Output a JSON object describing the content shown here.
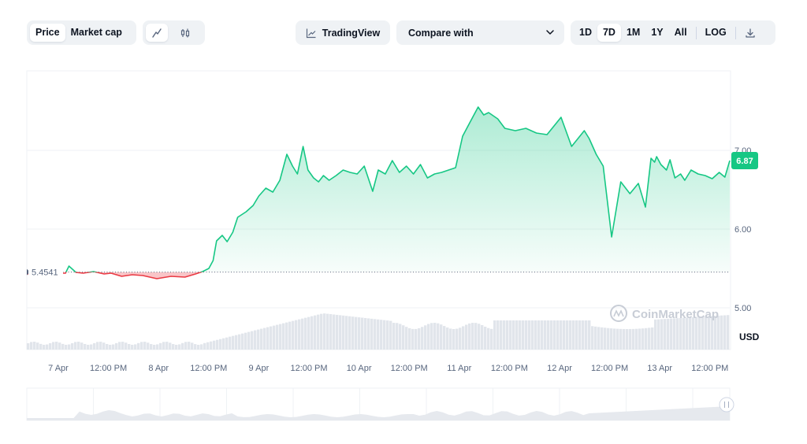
{
  "toolbar": {
    "price_tab": "Price",
    "marketcap_tab": "Market cap",
    "line_chart_icon": "line-chart-icon",
    "candlestick_icon": "candlestick-icon",
    "tradingview_label": "TradingView",
    "compare_label": "Compare with",
    "ranges": [
      "1D",
      "7D",
      "1M",
      "1Y",
      "All"
    ],
    "active_range": "7D",
    "log_label": "LOG",
    "download_icon": "download-icon"
  },
  "chart": {
    "currency": "USD",
    "watermark": "CoinMarketCap",
    "baseline_label": "5.4541",
    "current_label": "6.87",
    "up_color": "#16c784",
    "down_color": "#ea3943"
  },
  "chart_data": {
    "type": "line",
    "title": "",
    "xlabel": "",
    "ylabel": "USD",
    "ylim": [
      4.0,
      7.99
    ],
    "yticks": [
      5.0,
      6.0,
      7.0
    ],
    "ytick_labels": [
      "5.00",
      "6.00",
      "7.00"
    ],
    "xtick_labels": [
      "7 Apr",
      "12:00 PM",
      "8 Apr",
      "12:00 PM",
      "9 Apr",
      "12:00 PM",
      "10 Apr",
      "12:00 PM",
      "11 Apr",
      "12:00 PM",
      "12 Apr",
      "12:00 PM",
      "13 Apr",
      "12:00 PM"
    ],
    "baseline": 5.4541,
    "current": 6.87,
    "grid": true,
    "series": [
      {
        "x": [
          0.0,
          0.055,
          0.06,
          0.07,
          0.08,
          0.095,
          0.11,
          0.12,
          0.135,
          0.15,
          0.165,
          0.175,
          0.185,
          0.205,
          0.225,
          0.24,
          0.25,
          0.259,
          0.265,
          0.27,
          0.278,
          0.285,
          0.293,
          0.3,
          0.312,
          0.322,
          0.33,
          0.34,
          0.35,
          0.36,
          0.37,
          0.378,
          0.385,
          0.393,
          0.4,
          0.408,
          0.415,
          0.422,
          0.43,
          0.44,
          0.45,
          0.46,
          0.47,
          0.48,
          0.492,
          0.5,
          0.51,
          0.52,
          0.53,
          0.54,
          0.55,
          0.56,
          0.57,
          0.58,
          0.59,
          0.6,
          0.61,
          0.62,
          0.63,
          0.642,
          0.65,
          0.657,
          0.67,
          0.68,
          0.695,
          0.71,
          0.725,
          0.74,
          0.76,
          0.775,
          0.793,
          0.8,
          0.81,
          0.82,
          0.832,
          0.845,
          0.858,
          0.87,
          0.88,
          0.888,
          0.893,
          0.896,
          0.902,
          0.91,
          0.915,
          0.922,
          0.93,
          0.936,
          0.945,
          0.955,
          0.965,
          0.975,
          0.985,
          0.993,
          1.0
        ],
        "values": [
          5.43,
          5.44,
          5.53,
          5.45,
          5.44,
          5.46,
          5.43,
          5.44,
          5.4,
          5.42,
          5.41,
          5.39,
          5.37,
          5.4,
          5.39,
          5.43,
          5.46,
          5.5,
          5.6,
          5.85,
          5.92,
          5.84,
          5.96,
          6.15,
          6.22,
          6.3,
          6.42,
          6.52,
          6.47,
          6.62,
          6.95,
          6.8,
          6.7,
          7.05,
          6.75,
          6.65,
          6.6,
          6.68,
          6.62,
          6.68,
          6.75,
          6.72,
          6.7,
          6.8,
          6.48,
          6.75,
          6.7,
          6.87,
          6.72,
          6.8,
          6.7,
          6.82,
          6.65,
          6.7,
          6.72,
          6.75,
          6.78,
          7.18,
          7.35,
          7.55,
          7.45,
          7.48,
          7.4,
          7.28,
          7.25,
          7.28,
          7.22,
          7.2,
          7.42,
          7.05,
          7.25,
          7.15,
          6.95,
          6.8,
          5.9,
          6.6,
          6.45,
          6.58,
          6.28,
          6.9,
          6.85,
          6.92,
          6.82,
          6.75,
          6.88,
          6.65,
          6.7,
          6.62,
          6.75,
          6.7,
          6.68,
          6.64,
          6.72,
          6.66,
          6.87
        ]
      }
    ]
  }
}
